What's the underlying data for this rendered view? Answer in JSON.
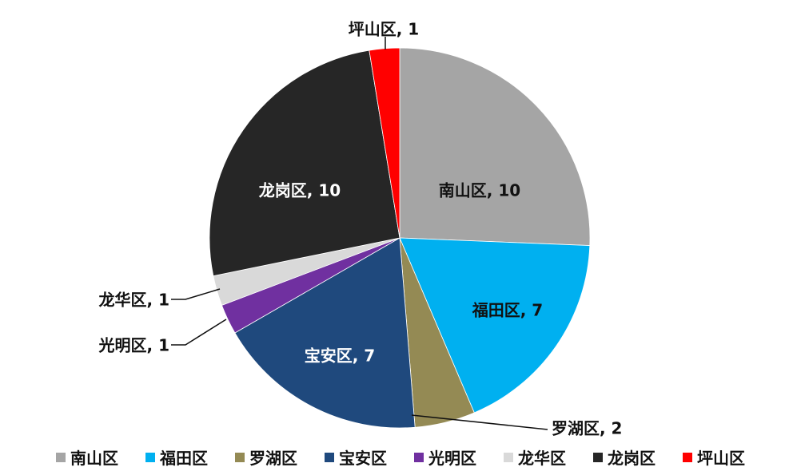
{
  "chart_data": {
    "type": "pie",
    "title": "",
    "categories": [
      "南山区",
      "福田区",
      "罗湖区",
      "宝安区",
      "光明区",
      "龙华区",
      "龙岗区",
      "坪山区"
    ],
    "values": [
      10,
      7,
      2,
      7,
      1,
      1,
      10,
      1
    ],
    "colors": [
      "#A5A5A5",
      "#00B0F0",
      "#948A54",
      "#1F497D",
      "#7030A0",
      "#D9D9D9",
      "#262626",
      "#FF0000"
    ],
    "data_labels": [
      "南山区, 10",
      "福田区, 7",
      "罗湖区, 2",
      "宝安区, 7",
      "光明区, 1",
      "龙华区, 1",
      "龙岗区, 10",
      "坪山区, 1"
    ],
    "legend_position": "bottom",
    "start_angle_deg": 0,
    "direction": "clockwise"
  }
}
